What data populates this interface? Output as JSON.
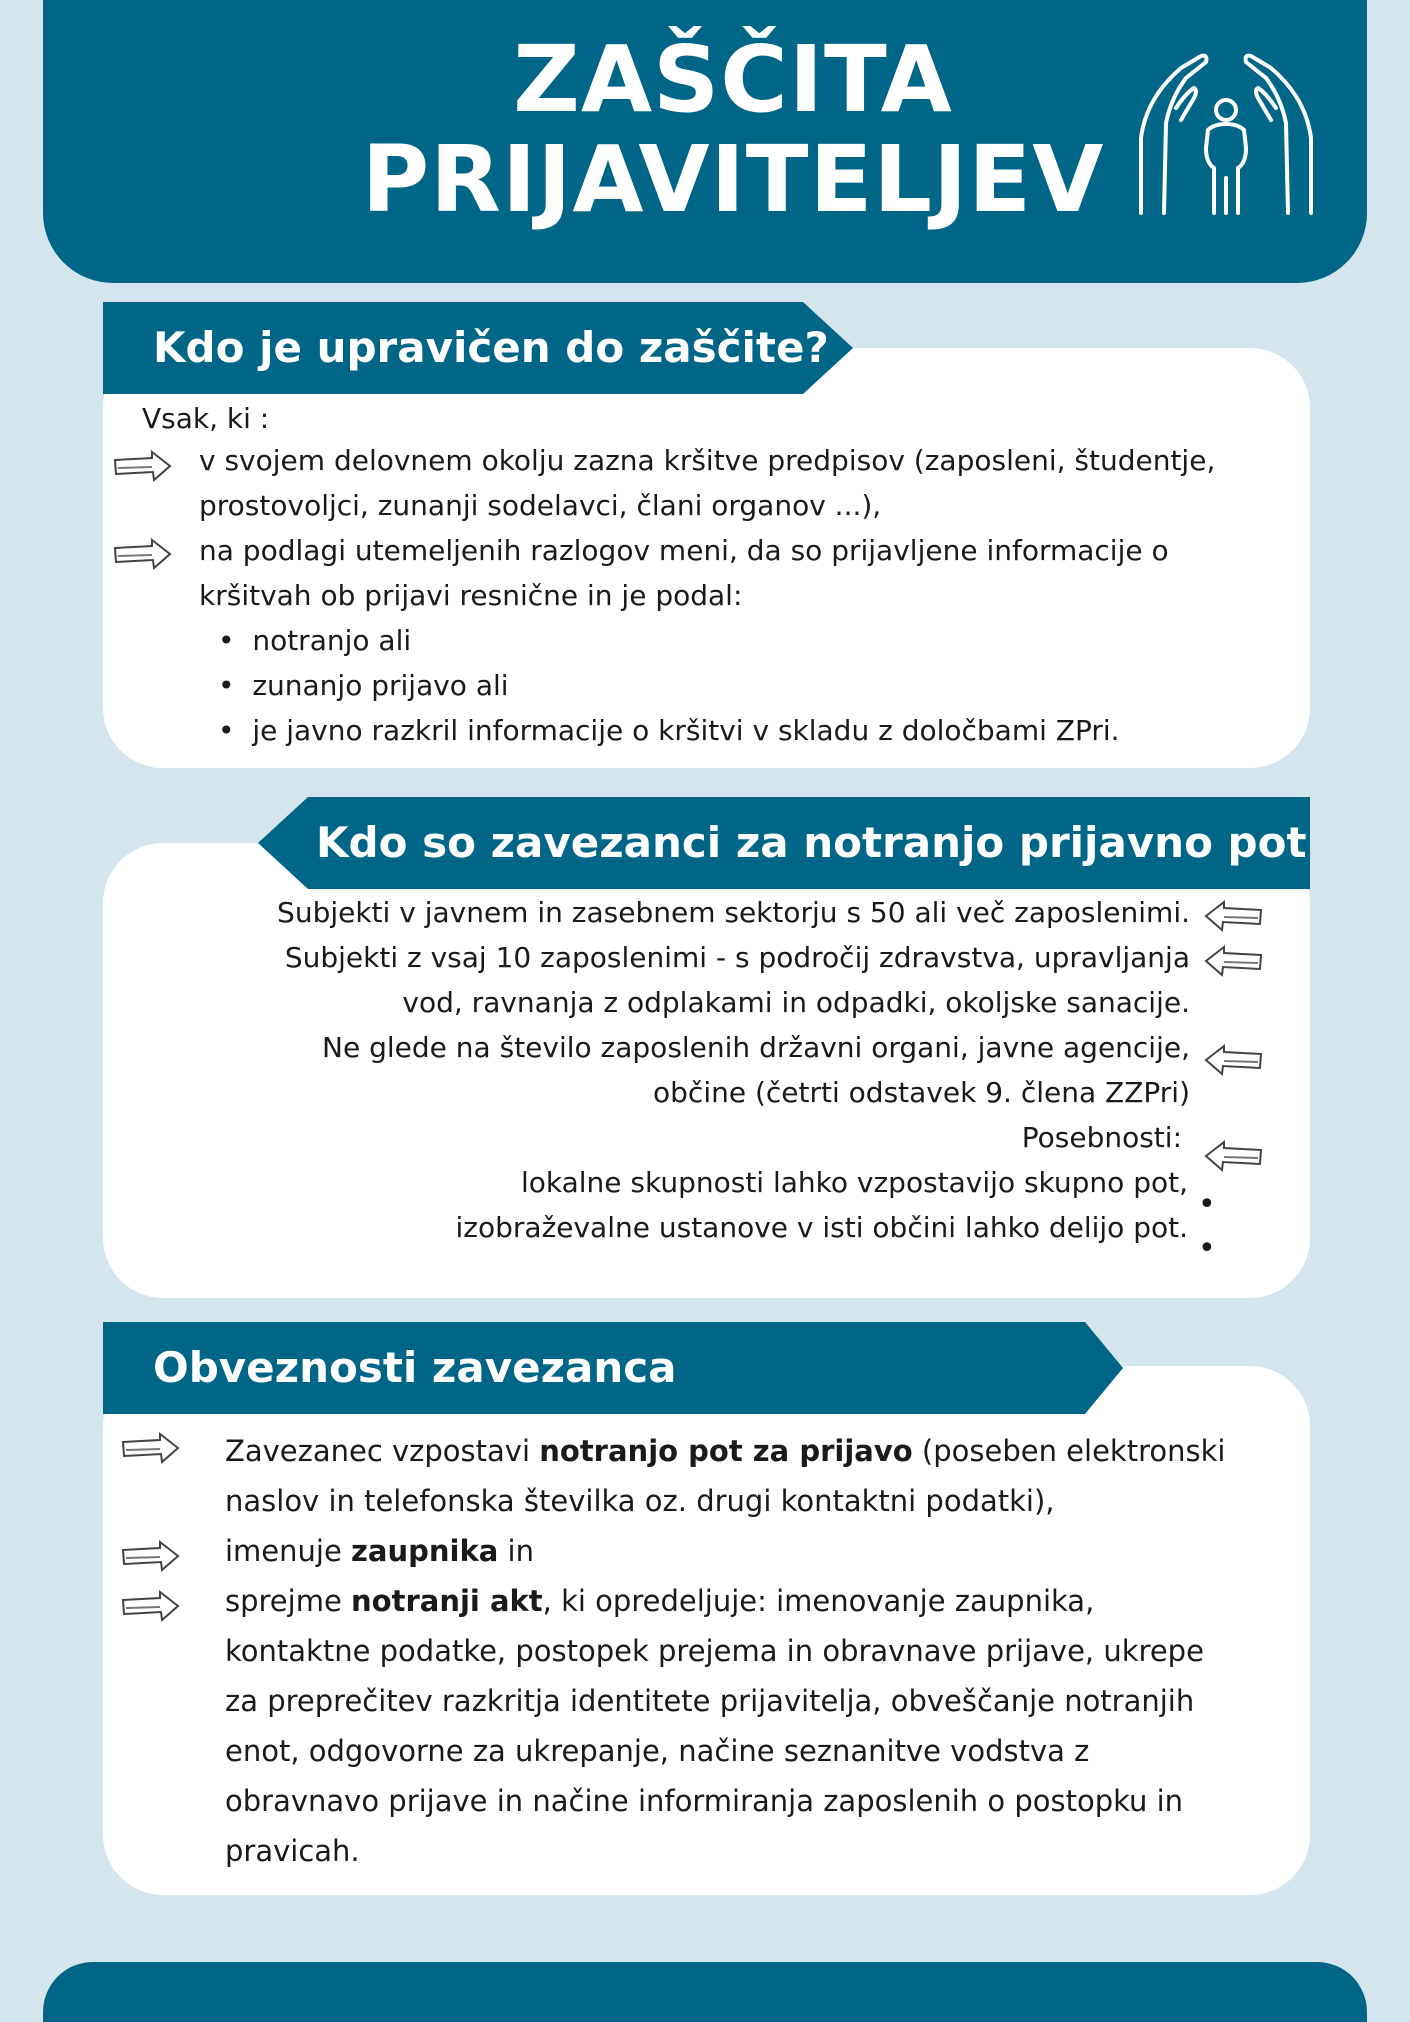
{
  "header": {
    "title_line1": "ZAŠČITA",
    "title_line2": "PRIJAVITELJEV",
    "icon": "protecting-hands-person-icon"
  },
  "colors": {
    "primary": "#006688",
    "background": "#d4e5ee",
    "card": "#ffffff"
  },
  "section1": {
    "title": "Kdo je upravičen do zaščite?",
    "intro": "Vsak, ki :",
    "items": [
      {
        "line1": "v svojem delovnem okolju zazna kršitve predpisov (zaposleni, študentje,",
        "line2": "prostovoljci, zunanji sodelavci, člani organov ...),"
      },
      {
        "line1": "na podlagi utemeljenih razlogov meni, da so prijavljene informacije o",
        "line2": "kršitvah ob prijavi resnične in je podal:"
      }
    ],
    "bullets": [
      "notranjo ali",
      "zunanjo prijavo ali",
      "je javno razkril informacije o kršitvi v skladu z določbami ZPri."
    ]
  },
  "section2": {
    "title": "Kdo so zavezanci za notranjo prijavno pot",
    "lines": [
      "Subjekti v javnem in zasebnem sektorju s 50 ali več zaposlenimi.",
      "Subjekti z vsaj 10 zaposlenimi - s področij zdravstva, upravljanja",
      "vod, ravnanja z odplakami in odpadki, okoljske sanacije.",
      "Ne glede na število zaposlenih državni organi, javne agencije,",
      "občine (četrti odstavek 9. člena ZZPri)",
      "Posebnosti:",
      "lokalne skupnosti lahko vzpostavijo skupno pot,",
      "izobraževalne ustanove v isti občini lahko delijo pot."
    ]
  },
  "section3": {
    "title": "Obveznosti zavezanca",
    "item1": {
      "pre": "Zavezanec vzpostavi ",
      "bold": "notranjo pot za prijavo",
      "post": " (poseben elektronski",
      "line2": "naslov in telefonska številka oz. drugi kontaktni podatki),"
    },
    "item2": {
      "pre": "imenuje ",
      "bold": "zaupnika",
      "post": " in"
    },
    "item3": {
      "pre": "sprejme ",
      "bold": "notranji akt",
      "post": ", ki opredeljuje: imenovanje zaupnika,",
      "lines": [
        "kontaktne podatke, postopek prejema in obravnave prijave, ukrepe",
        "za preprečitev razkritja identitete prijavitelja, obveščanje notranjih",
        "enot, odgovorne za ukrepanje, načine seznanitve vodstva z",
        "obravnavo prijave in načine informiranja zaposlenih o postopku in",
        "pravicah."
      ]
    }
  }
}
